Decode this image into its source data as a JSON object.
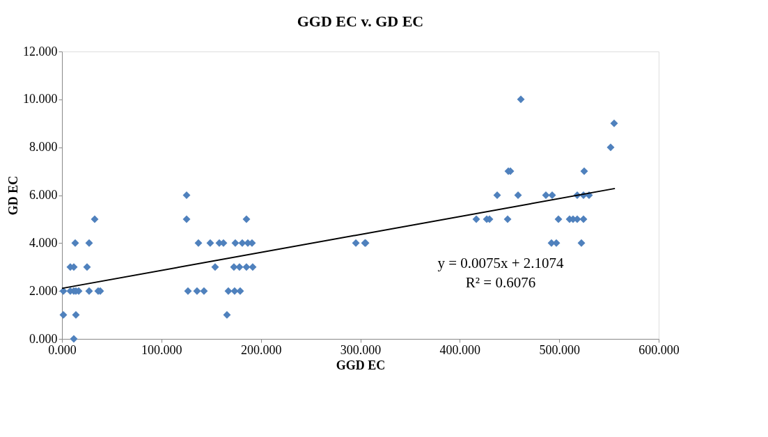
{
  "chart_data": {
    "type": "scatter",
    "title": "GGD EC v. GD EC",
    "xlabel": "GGD EC",
    "ylabel": "GD EC",
    "marker": "diamond",
    "grid": false,
    "xlim": [
      0,
      600
    ],
    "ylim": [
      0,
      12
    ],
    "xticks": [
      {
        "value": 0,
        "label": "0.000"
      },
      {
        "value": 100,
        "label": "100.000"
      },
      {
        "value": 200,
        "label": "200.000"
      },
      {
        "value": 300,
        "label": "300.000"
      },
      {
        "value": 400,
        "label": "400.000"
      },
      {
        "value": 500,
        "label": "500.000"
      },
      {
        "value": 600,
        "label": "600.000"
      }
    ],
    "yticks": [
      {
        "value": 0,
        "label": "0.000"
      },
      {
        "value": 2,
        "label": "2.000"
      },
      {
        "value": 4,
        "label": "4.000"
      },
      {
        "value": 6,
        "label": "6.000"
      },
      {
        "value": 8,
        "label": "8.000"
      },
      {
        "value": 10,
        "label": "10.000"
      },
      {
        "value": 12,
        "label": "12.000"
      }
    ],
    "annotations": [
      "y = 0.0075x + 2.1074",
      "R² = 0.6076"
    ],
    "series": [
      {
        "color": "#4f81bd",
        "x": [
          1.4,
          8.4,
          11.9,
          14,
          16.8,
          27.3,
          36.4,
          38.5,
          1.4,
          14,
          11.9,
          8.4,
          11.9,
          25.2,
          13.3,
          27.3,
          32.9,
          125.3,
          125.3,
          137.2,
          149.1,
          126.7,
          135.8,
          142.8,
          158.2,
          162.4,
          174.3,
          181.3,
          186.9,
          191.1,
          185.5,
          154.0,
          172.9,
          178.5,
          185.5,
          191.8,
          167.3,
          173.6,
          179.2,
          165.9,
          295.5,
          304.6,
          305.3,
          461.4,
          555.2,
          551.7,
          448.8,
          450.9,
          525.1,
          437.6,
          458.6,
          486.6,
          492.9,
          518.1,
          524.4,
          530.0,
          416.6,
          427.1,
          429.9,
          448.1,
          499.2,
          510.4,
          513.9,
          518.1,
          524.4,
          492.2,
          497.1,
          522.3
        ],
        "values": [
          2,
          2,
          2,
          2,
          2,
          2,
          2,
          2,
          1,
          1,
          0,
          3,
          3,
          3,
          4,
          4,
          5,
          5,
          6,
          4,
          4,
          2,
          2,
          2,
          4,
          4,
          4,
          4,
          4,
          4,
          5,
          3,
          3,
          3,
          3,
          3,
          2,
          2,
          2,
          1,
          4,
          4,
          4,
          10,
          9,
          8,
          7,
          7,
          7,
          6,
          6,
          6,
          6,
          6,
          6,
          6,
          5,
          5,
          5,
          5,
          5,
          5,
          5,
          5,
          5,
          4,
          4,
          4
        ]
      },
      {
        "type": "line",
        "marker": "none",
        "color": "#000000",
        "x": [
          0,
          556
        ],
        "values": [
          2.11,
          6.28
        ]
      }
    ]
  }
}
